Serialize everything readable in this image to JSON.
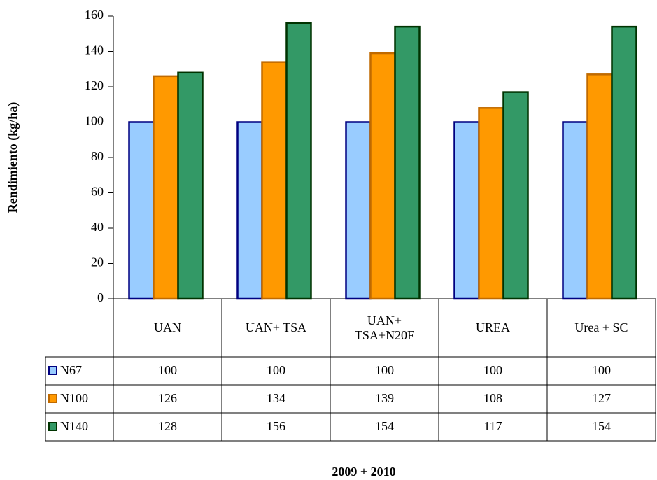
{
  "chart_data": {
    "type": "bar",
    "ylabel": "Rendimiento (kg/ha)",
    "xlabel": "2009 + 2010",
    "categories": [
      "UAN",
      "UAN+ TSA",
      "UAN+ TSA+N20F",
      "UREA",
      "Urea + SC"
    ],
    "series": [
      {
        "name": "N67",
        "color": "#99ccff",
        "edgecolor": "#000080",
        "values": [
          100,
          100,
          100,
          100,
          100
        ]
      },
      {
        "name": "N100",
        "color": "#ff9900",
        "edgecolor": "#c06a00",
        "values": [
          126,
          134,
          139,
          108,
          127
        ]
      },
      {
        "name": "N140",
        "color": "#339966",
        "edgecolor": "#003300",
        "values": [
          128,
          156,
          154,
          117,
          154
        ]
      }
    ],
    "ylim": [
      0,
      160
    ],
    "yticks": [
      0,
      20,
      40,
      60,
      80,
      100,
      120,
      140,
      160
    ],
    "grid": false
  }
}
